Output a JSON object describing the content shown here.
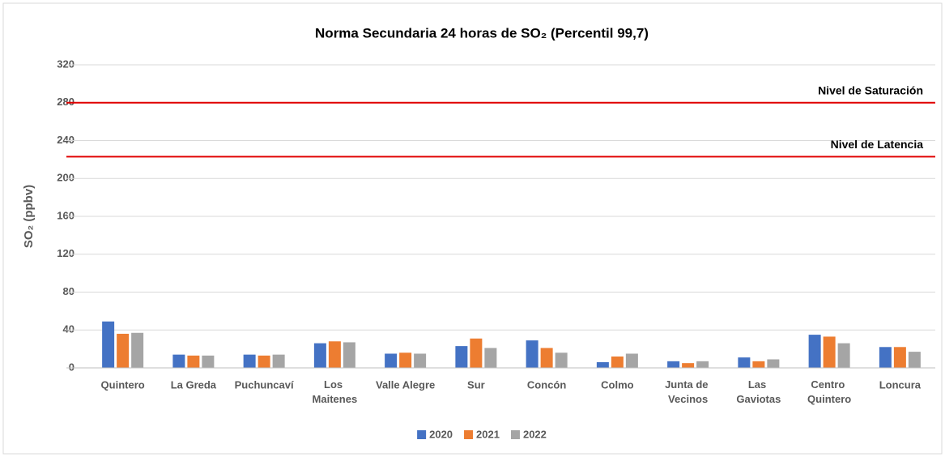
{
  "chart_data": {
    "type": "bar",
    "title": "Norma Secundaria 24 horas de SO₂ (Percentil 99,7)",
    "y_label": "SO₂ (ppbv)",
    "categories": [
      "Quintero",
      "La Greda",
      "Puchuncaví",
      "Los Maitenes",
      "Valle Alegre",
      "Sur",
      "Concón",
      "Colmo",
      "Junta de Vecinos",
      "Las Gaviotas",
      "Centro Quintero",
      "Loncura"
    ],
    "series": [
      {
        "name": "2020",
        "color": "#4472c4",
        "values": [
          49,
          14,
          14,
          26,
          15,
          23,
          29,
          6,
          7,
          11,
          35,
          22
        ]
      },
      {
        "name": "2021",
        "color": "#ed7d31",
        "values": [
          36,
          13,
          13,
          28,
          16,
          31,
          21,
          12,
          5,
          7,
          33,
          22
        ]
      },
      {
        "name": "2022",
        "color": "#a5a5a5",
        "values": [
          37,
          13,
          14,
          27,
          15,
          21,
          16,
          15,
          7,
          9,
          26,
          17
        ]
      }
    ],
    "reference_lines": [
      {
        "label": "Nivel de Saturación",
        "value": 280,
        "color": "#e00000"
      },
      {
        "label": "Nivel de Latencia",
        "value": 223,
        "color": "#e00000"
      }
    ],
    "ylim": [
      0,
      320
    ],
    "yticks": [
      0,
      40,
      80,
      120,
      160,
      200,
      240,
      280,
      320
    ],
    "grid": true,
    "legend": "bottom"
  }
}
